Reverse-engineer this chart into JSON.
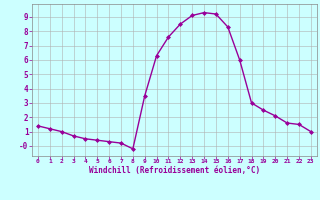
{
  "x": [
    0,
    1,
    2,
    3,
    4,
    5,
    6,
    7,
    8,
    9,
    10,
    11,
    12,
    13,
    14,
    15,
    16,
    17,
    18,
    19,
    20,
    21,
    22,
    23
  ],
  "y": [
    1.4,
    1.2,
    1.0,
    0.7,
    0.5,
    0.4,
    0.3,
    0.2,
    -0.2,
    3.5,
    6.3,
    7.6,
    8.5,
    9.1,
    9.3,
    9.2,
    8.3,
    6.0,
    3.0,
    2.5,
    2.1,
    1.6,
    1.5,
    1.0
  ],
  "line_color": "#990099",
  "marker": "D",
  "marker_size": 2.0,
  "bg_color": "#ccffff",
  "grid_color": "#b0b0b0",
  "xlabel": "Windchill (Refroidissement éolien,°C)",
  "xlabel_color": "#990099",
  "tick_color": "#990099",
  "ylim": [
    -0.7,
    9.9
  ],
  "xlim": [
    -0.5,
    23.5
  ],
  "yticks": [
    0,
    1,
    2,
    3,
    4,
    5,
    6,
    7,
    8,
    9
  ],
  "ytick_labels": [
    "-0",
    "1",
    "2",
    "3",
    "4",
    "5",
    "6",
    "7",
    "8",
    "9"
  ],
  "xticks": [
    0,
    1,
    2,
    3,
    4,
    5,
    6,
    7,
    8,
    9,
    10,
    11,
    12,
    13,
    14,
    15,
    16,
    17,
    18,
    19,
    20,
    21,
    22,
    23
  ],
  "spine_color": "#888888",
  "linewidth": 1.0
}
